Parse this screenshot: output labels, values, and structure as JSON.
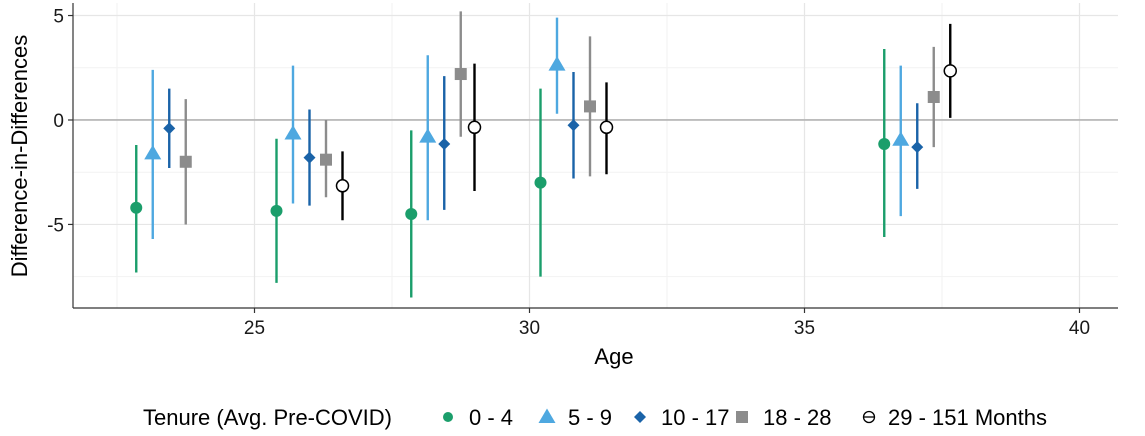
{
  "chart_data": {
    "type": "scatter",
    "subtype": "point-with-error-bars",
    "xlabel": "Age",
    "ylabel": "Difference-in-Differences",
    "xlim": [
      21.7,
      40.7
    ],
    "ylim": [
      -9,
      5.6
    ],
    "x_ticks": [
      25,
      30,
      35,
      40
    ],
    "y_ticks": [
      -5,
      0,
      5
    ],
    "zero_line": 0,
    "grid": true,
    "legend": {
      "position": "bottom",
      "title": "Tenure (Avg. Pre-COVID)",
      "entries": [
        "0 - 4",
        "5 - 9",
        "10 - 17",
        "18 - 28",
        "29 - 151 Months"
      ]
    },
    "series": [
      {
        "name": "0 - 4",
        "color": "#1b9e6b",
        "marker": "circle",
        "points": [
          {
            "x": 22.85,
            "y": -4.2,
            "lo": -7.3,
            "hi": -1.2
          },
          {
            "x": 25.4,
            "y": -4.35,
            "lo": -7.8,
            "hi": -0.9
          },
          {
            "x": 27.85,
            "y": -4.5,
            "lo": -8.5,
            "hi": -0.5
          },
          {
            "x": 30.2,
            "y": -3.0,
            "lo": -7.5,
            "hi": 1.5
          },
          {
            "x": 36.45,
            "y": -1.15,
            "lo": -5.6,
            "hi": 3.4
          }
        ]
      },
      {
        "name": "5 - 9",
        "color": "#4ea8e0",
        "marker": "triangle",
        "points": [
          {
            "x": 23.15,
            "y": -1.6,
            "lo": -5.7,
            "hi": 2.4
          },
          {
            "x": 25.7,
            "y": -0.65,
            "lo": -4.0,
            "hi": 2.6
          },
          {
            "x": 28.15,
            "y": -0.8,
            "lo": -4.8,
            "hi": 3.1
          },
          {
            "x": 30.5,
            "y": 2.65,
            "lo": 0.3,
            "hi": 4.9
          },
          {
            "x": 36.75,
            "y": -0.95,
            "lo": -4.6,
            "hi": 2.6
          }
        ]
      },
      {
        "name": "10 - 17",
        "color": "#1a63a8",
        "marker": "diamond",
        "points": [
          {
            "x": 23.45,
            "y": -0.4,
            "lo": -2.3,
            "hi": 1.5
          },
          {
            "x": 26.0,
            "y": -1.8,
            "lo": -4.1,
            "hi": 0.5
          },
          {
            "x": 28.45,
            "y": -1.15,
            "lo": -4.3,
            "hi": 2.1
          },
          {
            "x": 30.8,
            "y": -0.25,
            "lo": -2.8,
            "hi": 2.3
          },
          {
            "x": 37.05,
            "y": -1.3,
            "lo": -3.3,
            "hi": 0.8
          }
        ]
      },
      {
        "name": "18 - 28",
        "color": "#8c8c8c",
        "marker": "square",
        "points": [
          {
            "x": 23.75,
            "y": -2.0,
            "lo": -5.0,
            "hi": 1.0
          },
          {
            "x": 26.3,
            "y": -1.9,
            "lo": -3.7,
            "hi": 0.0
          },
          {
            "x": 28.75,
            "y": 2.2,
            "lo": -0.8,
            "hi": 5.2
          },
          {
            "x": 31.1,
            "y": 0.65,
            "lo": -2.7,
            "hi": 4.0
          },
          {
            "x": 37.35,
            "y": 1.1,
            "lo": -1.3,
            "hi": 3.5
          }
        ]
      },
      {
        "name": "29 - 151 Months",
        "color": "#000000",
        "marker": "open-circle",
        "points": [
          {
            "x": 24.05,
            "y": null,
            "lo": null,
            "hi": null
          },
          {
            "x": 26.6,
            "y": -3.15,
            "lo": -4.8,
            "hi": -1.5
          },
          {
            "x": 29.0,
            "y": -0.35,
            "lo": -3.4,
            "hi": 2.7
          },
          {
            "x": 31.4,
            "y": -0.35,
            "lo": -2.6,
            "hi": 1.8
          },
          {
            "x": 37.65,
            "y": 2.35,
            "lo": 0.1,
            "hi": 4.6
          }
        ]
      }
    ]
  }
}
